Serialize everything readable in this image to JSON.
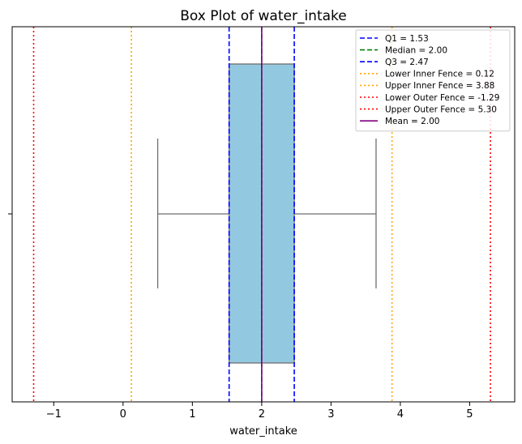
{
  "chart_data": {
    "type": "box",
    "title": "Box Plot of water_intake",
    "xlabel": "water_intake",
    "ylabel": "",
    "xlim": [
      -1.6,
      5.65
    ],
    "xticks": [
      -1,
      0,
      1,
      2,
      3,
      4,
      5
    ],
    "xtick_labels": [
      "−1",
      "0",
      "1",
      "2",
      "3",
      "4",
      "5"
    ],
    "grid": false,
    "legend_position": "top-right",
    "box": {
      "whisker_low": 0.5,
      "q1": 1.53,
      "median": 2.0,
      "q3": 2.47,
      "whisker_high": 3.65,
      "fill": "#93c9e0",
      "edge": "#6f6f6f"
    },
    "reference_lines": [
      {
        "label": "Q1 = 1.53",
        "value": 1.53,
        "color": "#0000ff",
        "style": "dashed"
      },
      {
        "label": "Median = 2.00",
        "value": 2.0,
        "color": "#008000",
        "style": "dashed"
      },
      {
        "label": "Q3 = 2.47",
        "value": 2.47,
        "color": "#0000ff",
        "style": "dashed"
      },
      {
        "label": "Lower Inner Fence = 0.12",
        "value": 0.12,
        "color": "#ffa500",
        "style": "dotted"
      },
      {
        "label": "Upper Inner Fence = 3.88",
        "value": 3.88,
        "color": "#ffa500",
        "style": "dotted"
      },
      {
        "label": "Lower Outer Fence = -1.29",
        "value": -1.29,
        "color": "#ff0000",
        "style": "dotted"
      },
      {
        "label": "Upper Outer Fence = 5.30",
        "value": 5.3,
        "color": "#ff0000",
        "style": "dotted"
      },
      {
        "label": "Mean = 2.00",
        "value": 2.0,
        "color": "#800080",
        "style": "solid"
      }
    ]
  }
}
